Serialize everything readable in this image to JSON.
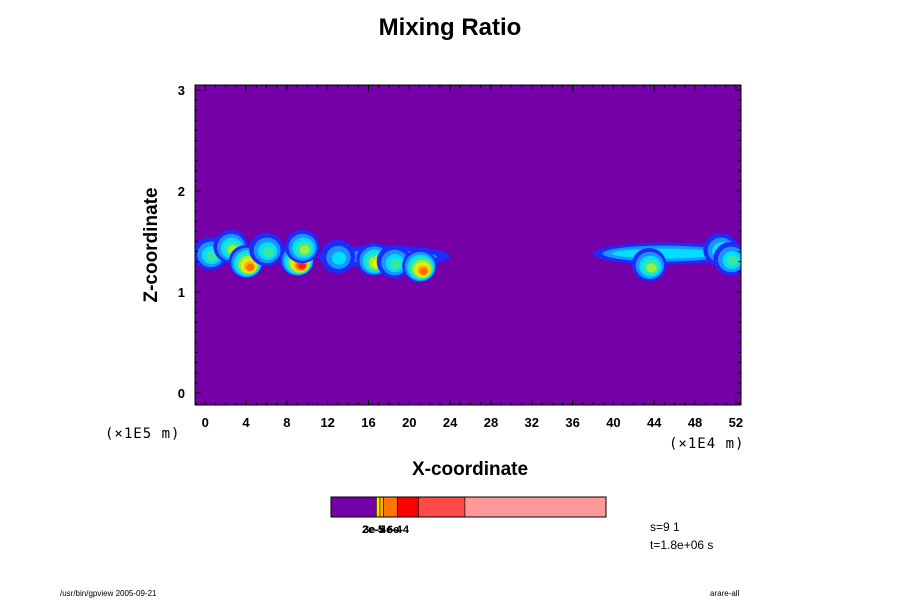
{
  "chart_data": {
    "type": "heatmap",
    "title": "Mixing Ratio",
    "xlabel": "X-coordinate",
    "ylabel": "Z-coordinate",
    "x_ticks": [
      "0",
      "4",
      "8",
      "12",
      "16",
      "20",
      "24",
      "28",
      "32",
      "36",
      "40",
      "44",
      "48",
      "52"
    ],
    "y_ticks": [
      "0",
      "1",
      "2",
      "3"
    ],
    "xlim": [
      -1,
      52.5
    ],
    "ylim": [
      -0.12,
      3.05
    ],
    "x_unit_note": "(×1E4 m)",
    "y_unit_note": "(×1E5 m)",
    "background_color": "#7500a8",
    "colorbar": {
      "colors": [
        "#7500a8",
        "#ffb000",
        "#ff7700",
        "#ff0000",
        "#ff4a4a",
        "#ff9999"
      ],
      "tick_labels_overlapping": [
        "2e-5",
        "3e-5",
        "4e-4",
        "6e-4"
      ]
    },
    "plumes": [
      {
        "x": 0.5,
        "z": 1.38,
        "peak": 0.45
      },
      {
        "x": 2.5,
        "z": 1.45,
        "peak": 0.55
      },
      {
        "x": 4.0,
        "z": 1.3,
        "peak": 0.85
      },
      {
        "x": 6.0,
        "z": 1.42,
        "peak": 0.4
      },
      {
        "x": 9.0,
        "z": 1.32,
        "peak": 1.0
      },
      {
        "x": 9.5,
        "z": 1.45,
        "peak": 0.5
      },
      {
        "x": 13.0,
        "z": 1.35,
        "peak": 0.35
      },
      {
        "x": 16.5,
        "z": 1.32,
        "peak": 0.65
      },
      {
        "x": 18.5,
        "z": 1.3,
        "peak": 0.45
      },
      {
        "x": 21.0,
        "z": 1.26,
        "peak": 0.85
      },
      {
        "x": 43.5,
        "z": 1.27,
        "peak": 0.55
      },
      {
        "x": 50.5,
        "z": 1.42,
        "peak": 0.45
      },
      {
        "x": 51.5,
        "z": 1.33,
        "peak": 0.4
      }
    ],
    "wisps": [
      {
        "x1": 11,
        "x2": 24,
        "z": 1.35,
        "peak": 0.15
      },
      {
        "x1": 38,
        "x2": 52,
        "z": 1.38,
        "peak": 0.2
      }
    ]
  },
  "info": {
    "step": "s=9 1",
    "time": "t=1.8e+06 s"
  },
  "footer": {
    "left": "/usr/bin/gpview 2005-09-21",
    "right": "arare-all"
  }
}
